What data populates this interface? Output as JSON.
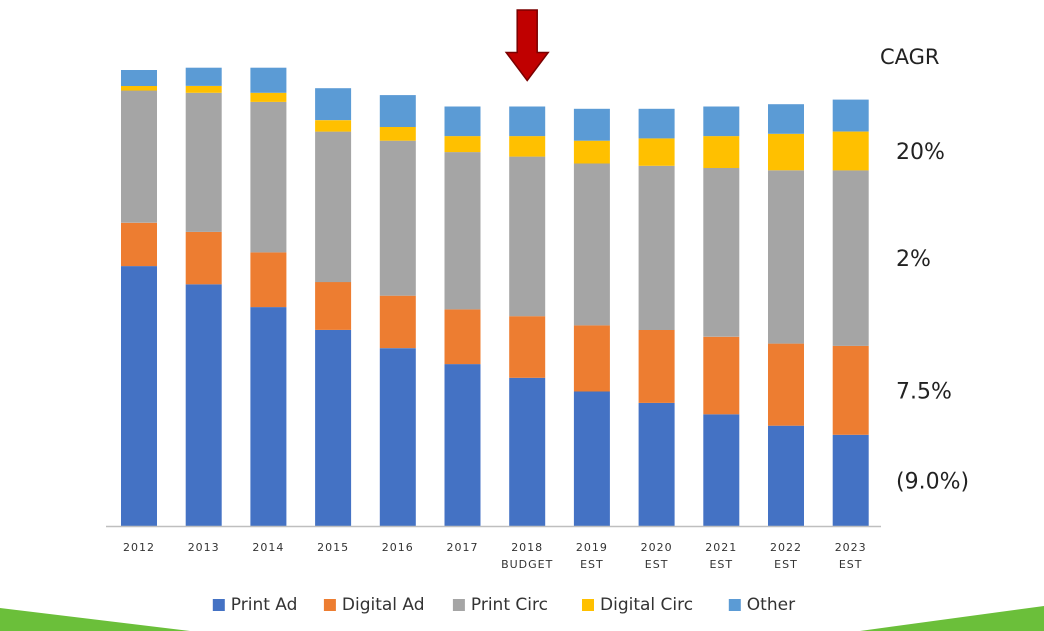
{
  "chart_data": {
    "type": "bar",
    "stacked": true,
    "title": "",
    "xlabel": "",
    "ylabel": "",
    "ylim": [
      0,
      100
    ],
    "grid": false,
    "legend_position": "bottom",
    "categories": [
      [
        "2012"
      ],
      [
        "2013"
      ],
      [
        "2014"
      ],
      [
        "2015"
      ],
      [
        "2016"
      ],
      [
        "2017"
      ],
      [
        "2018",
        "BUDGET"
      ],
      [
        "2019",
        "EST"
      ],
      [
        "2020",
        "EST"
      ],
      [
        "2021",
        "EST"
      ],
      [
        "2022",
        "EST"
      ],
      [
        "2023",
        "EST"
      ]
    ],
    "highlight_category_index": 6,
    "highlight_marker": "down-arrow",
    "series": [
      {
        "name": "Print Ad",
        "color": "#4472C4",
        "values": [
          57.0,
          53.0,
          48.0,
          43.0,
          39.0,
          35.5,
          32.5,
          29.5,
          27.0,
          24.5,
          22.0,
          20.0
        ]
      },
      {
        "name": "Digital Ad",
        "color": "#ED7D31",
        "values": [
          9.5,
          11.5,
          12.0,
          10.5,
          11.5,
          12.0,
          13.5,
          14.5,
          16.0,
          17.0,
          18.0,
          19.5
        ]
      },
      {
        "name": "Print Circ",
        "color": "#A5A5A5",
        "values": [
          29.0,
          30.5,
          33.0,
          33.0,
          34.0,
          34.5,
          35.0,
          35.5,
          36.0,
          37.0,
          38.0,
          38.5
        ]
      },
      {
        "name": "Digital Circ",
        "color": "#FFC000",
        "values": [
          1.0,
          1.5,
          2.0,
          2.5,
          3.0,
          3.5,
          4.5,
          5.0,
          6.0,
          7.0,
          8.0,
          8.5
        ]
      },
      {
        "name": "Other",
        "color": "#5B9BD5",
        "values": [
          3.5,
          4.0,
          5.5,
          7.0,
          7.0,
          6.5,
          6.5,
          7.0,
          6.5,
          6.5,
          6.5,
          7.0
        ]
      }
    ],
    "cagr": {
      "title": "CAGR",
      "labels": [
        {
          "text": "20%",
          "series": "Digital Circ",
          "color": "#222222"
        },
        {
          "text": "2%",
          "series": "Print Circ",
          "color": "#222222"
        },
        {
          "text": "7.5%",
          "series": "Digital Ad",
          "color": "#222222"
        },
        {
          "text": "(9.0%)",
          "series": "Print Ad",
          "color": "#E02020"
        }
      ]
    },
    "accent_color": "#6BBF3A",
    "arrow_color": "#C00000"
  }
}
